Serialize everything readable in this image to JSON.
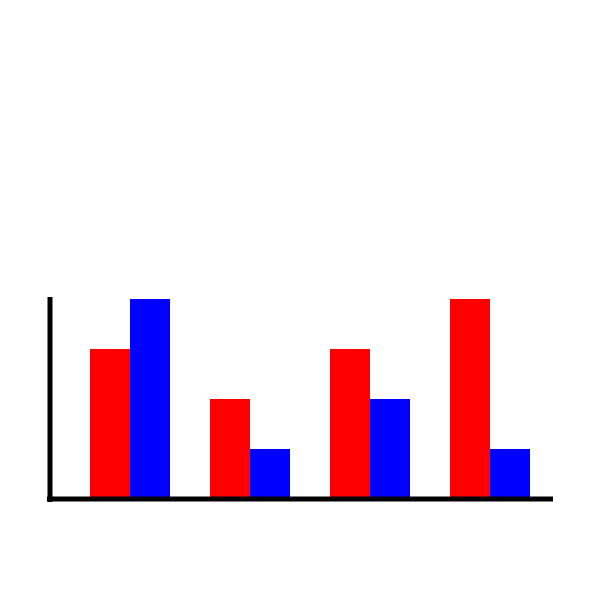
{
  "chart_data": {
    "type": "bar",
    "title": "",
    "xlabel": "",
    "ylabel": "",
    "categories": [
      "",
      "",
      "",
      ""
    ],
    "ylim": [
      0,
      4
    ],
    "grid": false,
    "legend": "none",
    "series": [
      {
        "values": [
          3,
          2,
          3,
          4
        ],
        "color": "#ff0000"
      },
      {
        "values": [
          4,
          1,
          2,
          1
        ],
        "color": "#0000ff"
      }
    ],
    "axis_color": "#000000"
  }
}
